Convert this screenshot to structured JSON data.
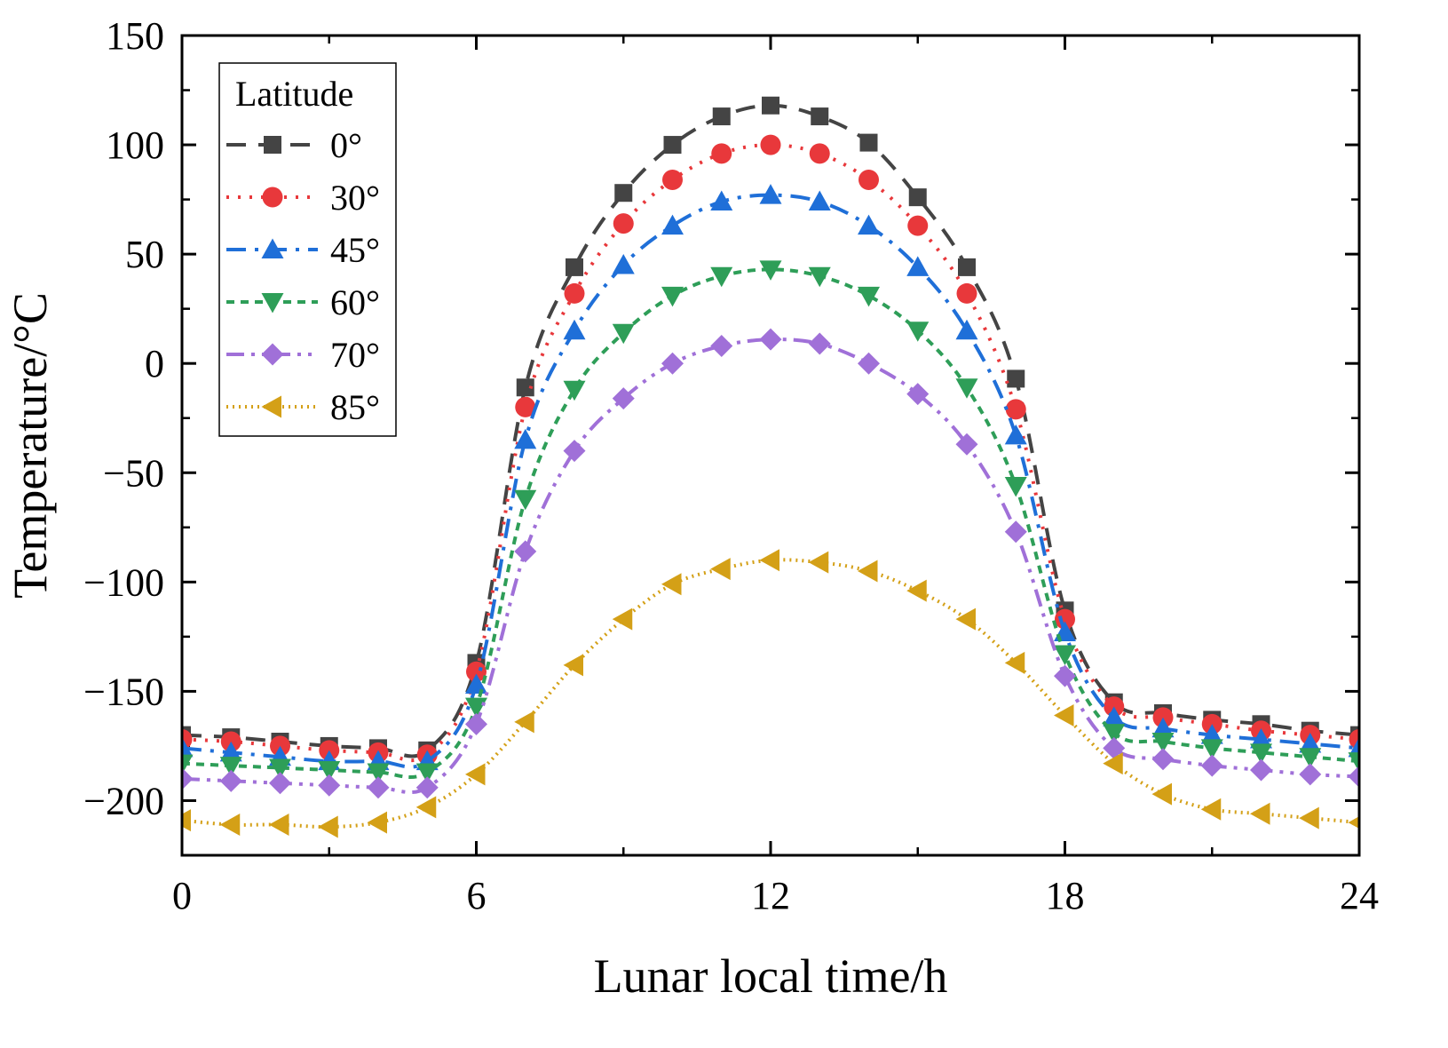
{
  "chart_data": {
    "type": "line",
    "title": "",
    "xlabel": "Lunar local time/h",
    "ylabel": "Temperature/°C",
    "xlim": [
      0,
      24
    ],
    "ylim": [
      -225,
      150
    ],
    "xticks": [
      0,
      6,
      12,
      18,
      24
    ],
    "yticks": [
      150,
      100,
      50,
      0,
      -50,
      -100,
      -150,
      -200
    ],
    "ytick_labels": [
      "150",
      "100",
      "50",
      "0",
      "−50",
      "−100",
      "−150",
      "−200"
    ],
    "legend": {
      "title": "Latitude",
      "position": "top-left"
    },
    "x": [
      0,
      1,
      2,
      3,
      4,
      5,
      6,
      7,
      8,
      9,
      10,
      11,
      12,
      13,
      14,
      15,
      16,
      17,
      18,
      19,
      20,
      21,
      22,
      23,
      24
    ],
    "series": [
      {
        "name": "0°",
        "color": "#444444",
        "marker": "square",
        "dash": "dash",
        "values": [
          -170,
          -171,
          -173,
          -175,
          -176,
          -177,
          -137,
          -11,
          44,
          78,
          100,
          113,
          118,
          113,
          101,
          76,
          44,
          -7,
          -113,
          -155,
          -160,
          -163,
          -165,
          -168,
          -170
        ]
      },
      {
        "name": "30°",
        "color": "#e8383b",
        "marker": "circle",
        "dash": "dot",
        "values": [
          -172,
          -173,
          -175,
          -177,
          -178,
          -179,
          -141,
          -20,
          32,
          64,
          84,
          96,
          100,
          96,
          84,
          63,
          32,
          -21,
          -117,
          -157,
          -162,
          -165,
          -168,
          -170,
          -172
        ]
      },
      {
        "name": "45°",
        "color": "#1f6fd8",
        "marker": "triangle-up",
        "dash": "dashdot",
        "values": [
          -176,
          -178,
          -180,
          -182,
          -182,
          -182,
          -147,
          -35,
          15,
          45,
          63,
          74,
          77,
          74,
          63,
          44,
          15,
          -33,
          -123,
          -162,
          -167,
          -170,
          -172,
          -174,
          -176
        ]
      },
      {
        "name": "60°",
        "color": "#2e9e58",
        "marker": "triangle-down",
        "dash": "shortdash",
        "values": [
          -183,
          -184,
          -185,
          -186,
          -187,
          -187,
          -157,
          -62,
          -12,
          14,
          31,
          40,
          43,
          40,
          31,
          15,
          -11,
          -56,
          -133,
          -169,
          -173,
          -176,
          -178,
          -180,
          -182
        ]
      },
      {
        "name": "70°",
        "color": "#a070d8",
        "marker": "diamond",
        "dash": "dashdotdot",
        "values": [
          -190,
          -191,
          -192,
          -193,
          -194,
          -194,
          -165,
          -86,
          -40,
          -16,
          0,
          8,
          11,
          9,
          0,
          -14,
          -37,
          -77,
          -143,
          -176,
          -181,
          -184,
          -186,
          -188,
          -189
        ]
      },
      {
        "name": "85°",
        "color": "#d4a017",
        "marker": "triangle-left",
        "dash": "dotted",
        "values": [
          -209,
          -211,
          -211,
          -212,
          -210,
          -203,
          -188,
          -164,
          -138,
          -117,
          -101,
          -94,
          -90,
          -91,
          -95,
          -104,
          -117,
          -137,
          -161,
          -183,
          -197,
          -204,
          -206,
          -208,
          -210
        ]
      }
    ]
  }
}
